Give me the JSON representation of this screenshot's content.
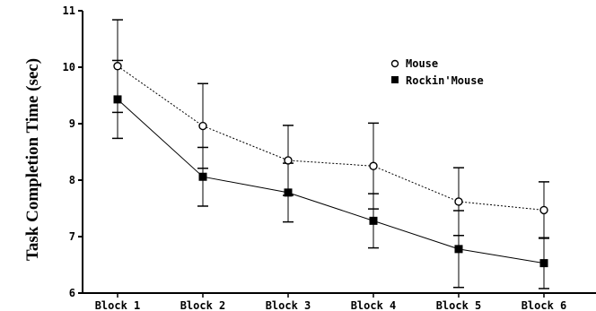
{
  "chart_data": {
    "type": "line",
    "title": "",
    "xlabel": "",
    "ylabel": "Task Completion Time (sec)",
    "categories": [
      "Block 1",
      "Block 2",
      "Block 3",
      "Block 4",
      "Block 5",
      "Block 6"
    ],
    "ylim": [
      6,
      11
    ],
    "yticks": [
      "6",
      "7",
      "8",
      "9",
      "10",
      "11"
    ],
    "grid": false,
    "legend_position": "top-right",
    "series": [
      {
        "name": "Mouse",
        "marker": "open-circle",
        "line_style": "dashed",
        "values": [
          10.02,
          8.96,
          8.35,
          8.25,
          7.62,
          7.47
        ],
        "error": [
          0.82,
          0.75,
          0.62,
          0.76,
          0.6,
          0.5
        ]
      },
      {
        "name": "Rockin'Mouse",
        "marker": "filled-square",
        "line_style": "solid",
        "values": [
          9.43,
          8.06,
          7.78,
          7.28,
          6.78,
          6.53
        ],
        "error": [
          0.69,
          0.52,
          0.52,
          0.48,
          0.68,
          0.45
        ]
      }
    ]
  }
}
